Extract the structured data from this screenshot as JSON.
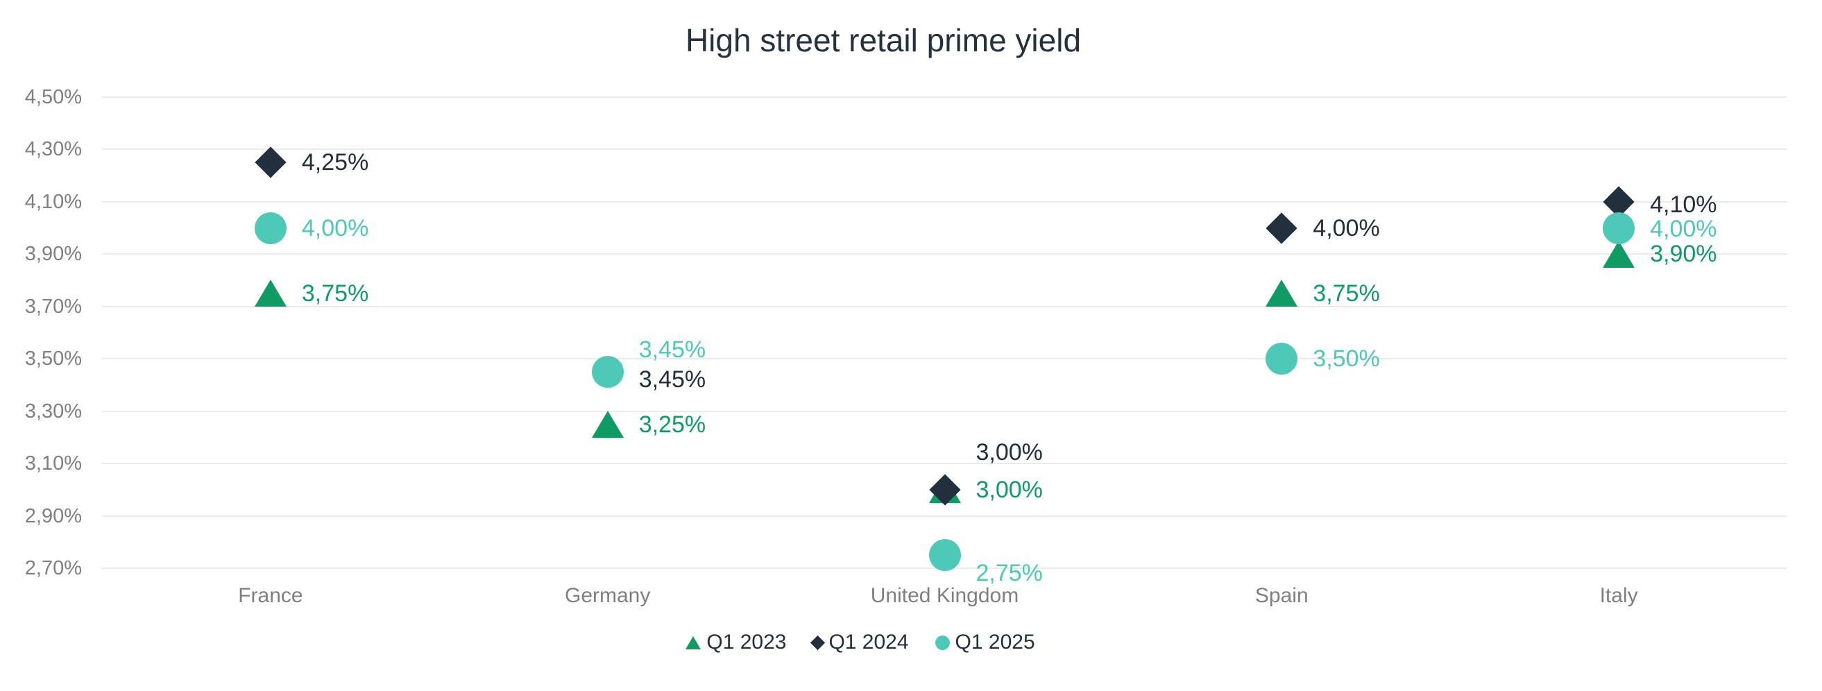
{
  "title": "High street retail prime yield",
  "chart_data": {
    "type": "scatter",
    "title": "High street retail prime yield",
    "xlabel": "",
    "ylabel": "",
    "categories": [
      "France",
      "Germany",
      "United Kingdom",
      "Spain",
      "Italy"
    ],
    "y_axis": {
      "min": 2.7,
      "max": 4.5,
      "step": 0.2,
      "tick_labels": [
        "4,50%",
        "4,30%",
        "4,10%",
        "3,90%",
        "3,70%",
        "3,50%",
        "3,30%",
        "3,10%",
        "2,90%",
        "2,70%"
      ]
    },
    "grid": true,
    "grid_color": "#ebebeb",
    "axis_text_color": "#7f7f7f",
    "legend_position": "bottom",
    "series": [
      {
        "name": "Q1 2023",
        "marker": "triangle",
        "color": "#0f9b63",
        "values": [
          3.75,
          3.25,
          3.0,
          3.75,
          3.9
        ],
        "labels": [
          "3,75%",
          "3,25%",
          "3,00%",
          "3,75%",
          "3,90%"
        ],
        "label_dy": [
          0,
          0,
          0,
          0,
          0
        ]
      },
      {
        "name": "Q1 2024",
        "marker": "diamond",
        "color": "#22303e",
        "values": [
          4.25,
          3.45,
          3.0,
          4.0,
          4.1
        ],
        "labels": [
          "4,25%",
          "3,45%",
          "3,00%",
          "4,00%",
          "4,10%"
        ],
        "label_dy": [
          0,
          11,
          -54,
          0,
          4
        ]
      },
      {
        "name": "Q1 2025",
        "marker": "circle",
        "color": "#4ec9b7",
        "values": [
          4.0,
          3.45,
          2.75,
          3.5,
          4.0
        ],
        "labels": [
          "4,00%",
          "3,45%",
          "2,75%",
          "3,50%",
          "4,00%"
        ],
        "label_dy": [
          0,
          -32,
          26,
          0,
          1
        ]
      }
    ]
  }
}
